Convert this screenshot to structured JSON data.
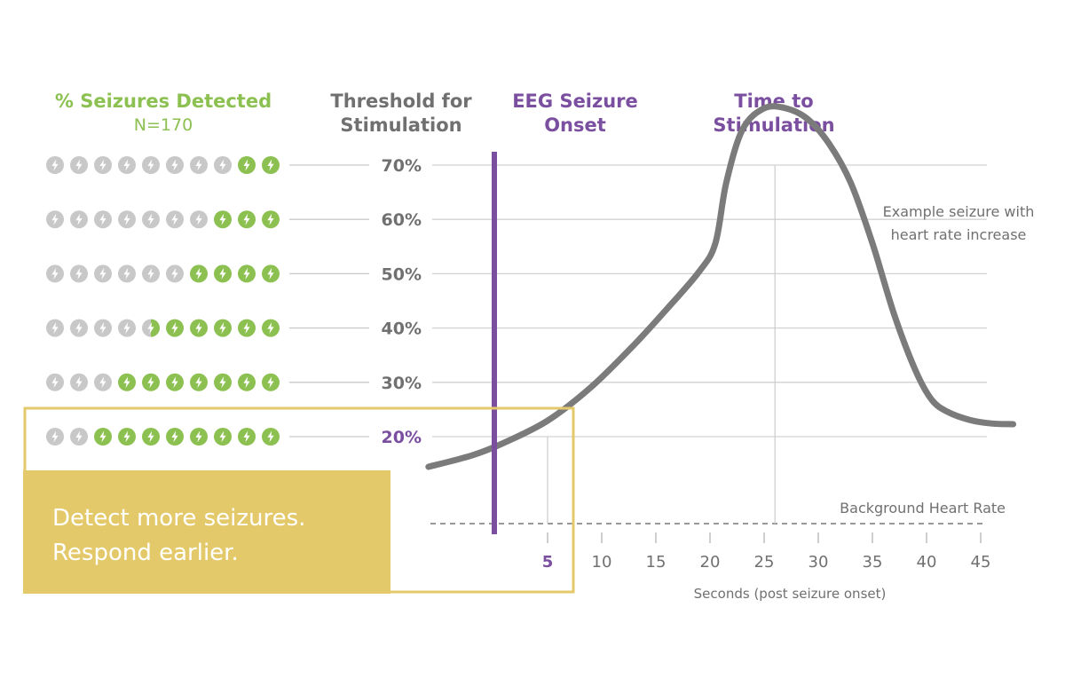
{
  "colors": {
    "green": "#8cc152",
    "gray_icon": "#c8c8c8",
    "purple": "#7b4fa0",
    "curve": "#7b7b7b",
    "text_gray": "#707070",
    "gold": "#e4c96a",
    "line": "#c9c9c9"
  },
  "headers": {
    "detected_title": "% Seizures Detected",
    "detected_n": "N=170",
    "threshold_line1": "Threshold for",
    "threshold_line2": "Stimulation",
    "onset_line1": "EEG Seizure",
    "onset_line2": "Onset",
    "time_line1": "Time to",
    "time_line2": "Stimulation"
  },
  "annotations": {
    "example_line1": "Example seizure with",
    "example_line2": "heart rate increase",
    "background_hr": "Background Heart Rate"
  },
  "callout": {
    "line1": "Detect more seizures.",
    "line2": "Respond earlier."
  },
  "icon": "lightning-bolt-icon",
  "chart_data": {
    "type": "line",
    "xlabel": "Seconds (post seizure onset)",
    "x_ticks": [
      5,
      10,
      15,
      20,
      25,
      30,
      35,
      40,
      45
    ],
    "highlight_tick": 5,
    "y_levels": [
      {
        "label": "70%",
        "threshold": 70,
        "detected_of_10": 2
      },
      {
        "label": "60%",
        "threshold": 60,
        "detected_of_10": 3
      },
      {
        "label": "50%",
        "threshold": 50,
        "detected_of_10": 4
      },
      {
        "label": "40%",
        "threshold": 40,
        "detected_of_10": 5.5
      },
      {
        "label": "30%",
        "threshold": 30,
        "detected_of_10": 7
      },
      {
        "label": "20%",
        "threshold": 20,
        "detected_of_10": 8
      }
    ],
    "highlight_level": "20%",
    "eeg_onset_seconds": 0,
    "series": [
      {
        "x": [
          -6,
          -2,
          1,
          5,
          9,
          13,
          16,
          19,
          20.5,
          21.5,
          23,
          25,
          27,
          29,
          31,
          33,
          35,
          37,
          39,
          40.5,
          42,
          44,
          46,
          48
        ],
        "y": [
          0,
          1.6,
          3.4,
          6.5,
          11.2,
          17.2,
          22.2,
          27.5,
          31.5,
          40,
          47.5,
          50.5,
          50.5,
          49,
          45.5,
          40,
          31.5,
          21.5,
          13.5,
          9.4,
          7.7,
          6.6,
          6.1,
          6.0
        ]
      }
    ],
    "stimulation_markers": [
      {
        "x": 5,
        "level": "20%"
      },
      {
        "x": 26,
        "level": "70%"
      }
    ],
    "background_line": true
  }
}
